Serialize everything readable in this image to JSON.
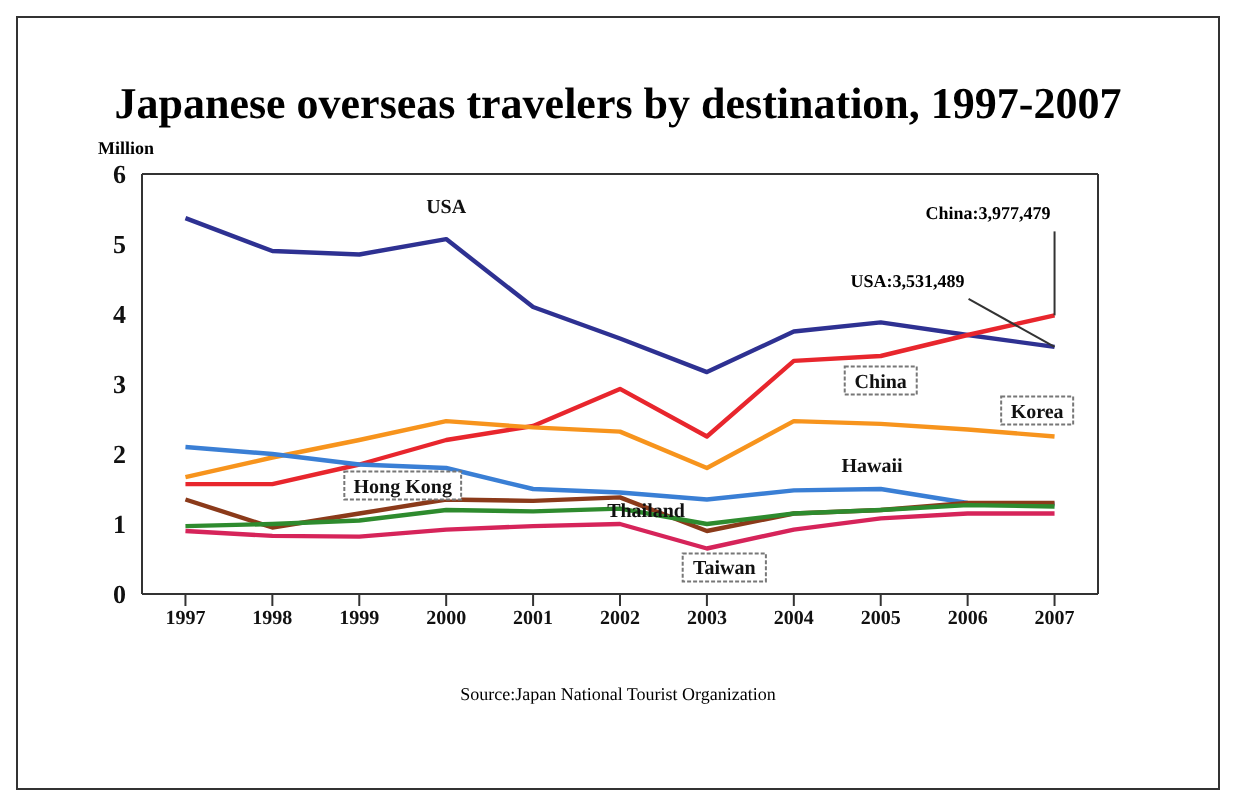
{
  "chart_data": {
    "type": "line",
    "title": "Japanese overseas travelers by destination, 1997-2007",
    "ylabel": "Million",
    "categories": [
      "1997",
      "1998",
      "1999",
      "2000",
      "2001",
      "2002",
      "2003",
      "2004",
      "2005",
      "2006",
      "2007"
    ],
    "ylim": [
      0,
      6
    ],
    "yticks": [
      0,
      1,
      2,
      3,
      4,
      5,
      6
    ],
    "grid": false,
    "legend": false,
    "marker": "none",
    "series": [
      {
        "name": "USA",
        "color": "#2e3192",
        "values": [
          5.37,
          4.9,
          4.85,
          5.07,
          4.1,
          3.65,
          3.17,
          3.75,
          3.88,
          3.7,
          3.53
        ]
      },
      {
        "name": "China",
        "color": "#e8262d",
        "values": [
          1.57,
          1.57,
          1.85,
          2.2,
          2.4,
          2.93,
          2.25,
          3.33,
          3.4,
          3.7,
          3.98
        ]
      },
      {
        "name": "Korea",
        "color": "#f7941d",
        "values": [
          1.67,
          1.95,
          2.2,
          2.47,
          2.38,
          2.32,
          1.8,
          2.47,
          2.43,
          2.35,
          2.25
        ]
      },
      {
        "name": "Hawaii",
        "color": "#3a7fd5",
        "values": [
          2.1,
          2.0,
          1.85,
          1.8,
          1.5,
          1.45,
          1.35,
          1.48,
          1.5,
          1.3,
          1.28
        ]
      },
      {
        "name": "Hong Kong",
        "color": "#8b3a1a",
        "values": [
          1.35,
          0.95,
          1.15,
          1.35,
          1.33,
          1.38,
          0.9,
          1.15,
          1.2,
          1.3,
          1.3
        ]
      },
      {
        "name": "Thailand",
        "color": "#2e8b2e",
        "values": [
          0.97,
          1.0,
          1.05,
          1.2,
          1.18,
          1.22,
          1.0,
          1.15,
          1.2,
          1.27,
          1.25
        ]
      },
      {
        "name": "Taiwan",
        "color": "#d6245a",
        "values": [
          0.9,
          0.83,
          0.82,
          0.92,
          0.97,
          1.0,
          0.65,
          0.92,
          1.08,
          1.15,
          1.15
        ]
      }
    ],
    "annotations": [
      {
        "text": "China:3,977,479",
        "x": "2007",
        "y": 3.98
      },
      {
        "text": "USA:3,531,489",
        "x": "2007",
        "y": 3.53
      },
      "Source:Japan National Tourist Organization"
    ]
  }
}
